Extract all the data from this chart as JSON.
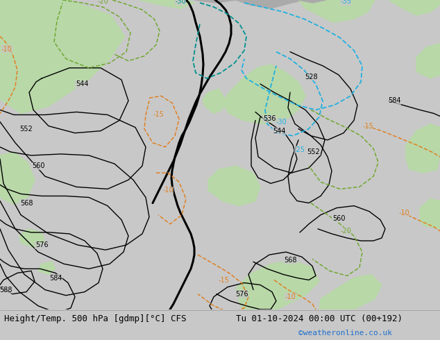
{
  "title_left": "Height/Temp. 500 hPa [gdmp][°C] CFS",
  "title_right": "Tu 01-10-2024 00:00 UTC (00+192)",
  "credit": "©weatheronline.co.uk",
  "bg_color": "#c8c8c8",
  "land_color": "#b8d8a8",
  "sea_color": "#c8c8c8",
  "arctic_color": "#aaaaaa",
  "bottom_bar_color": "#e0e0e0",
  "credit_color": "#1e6fcc",
  "text_color": "#000000",
  "black_color": "#000000",
  "orange_color": "#e08020",
  "green_color": "#70a830",
  "cyan_color": "#20b0e0",
  "teal_color": "#009090",
  "font_size_bottom": 9,
  "font_size_credit": 8,
  "font_size_label": 7
}
